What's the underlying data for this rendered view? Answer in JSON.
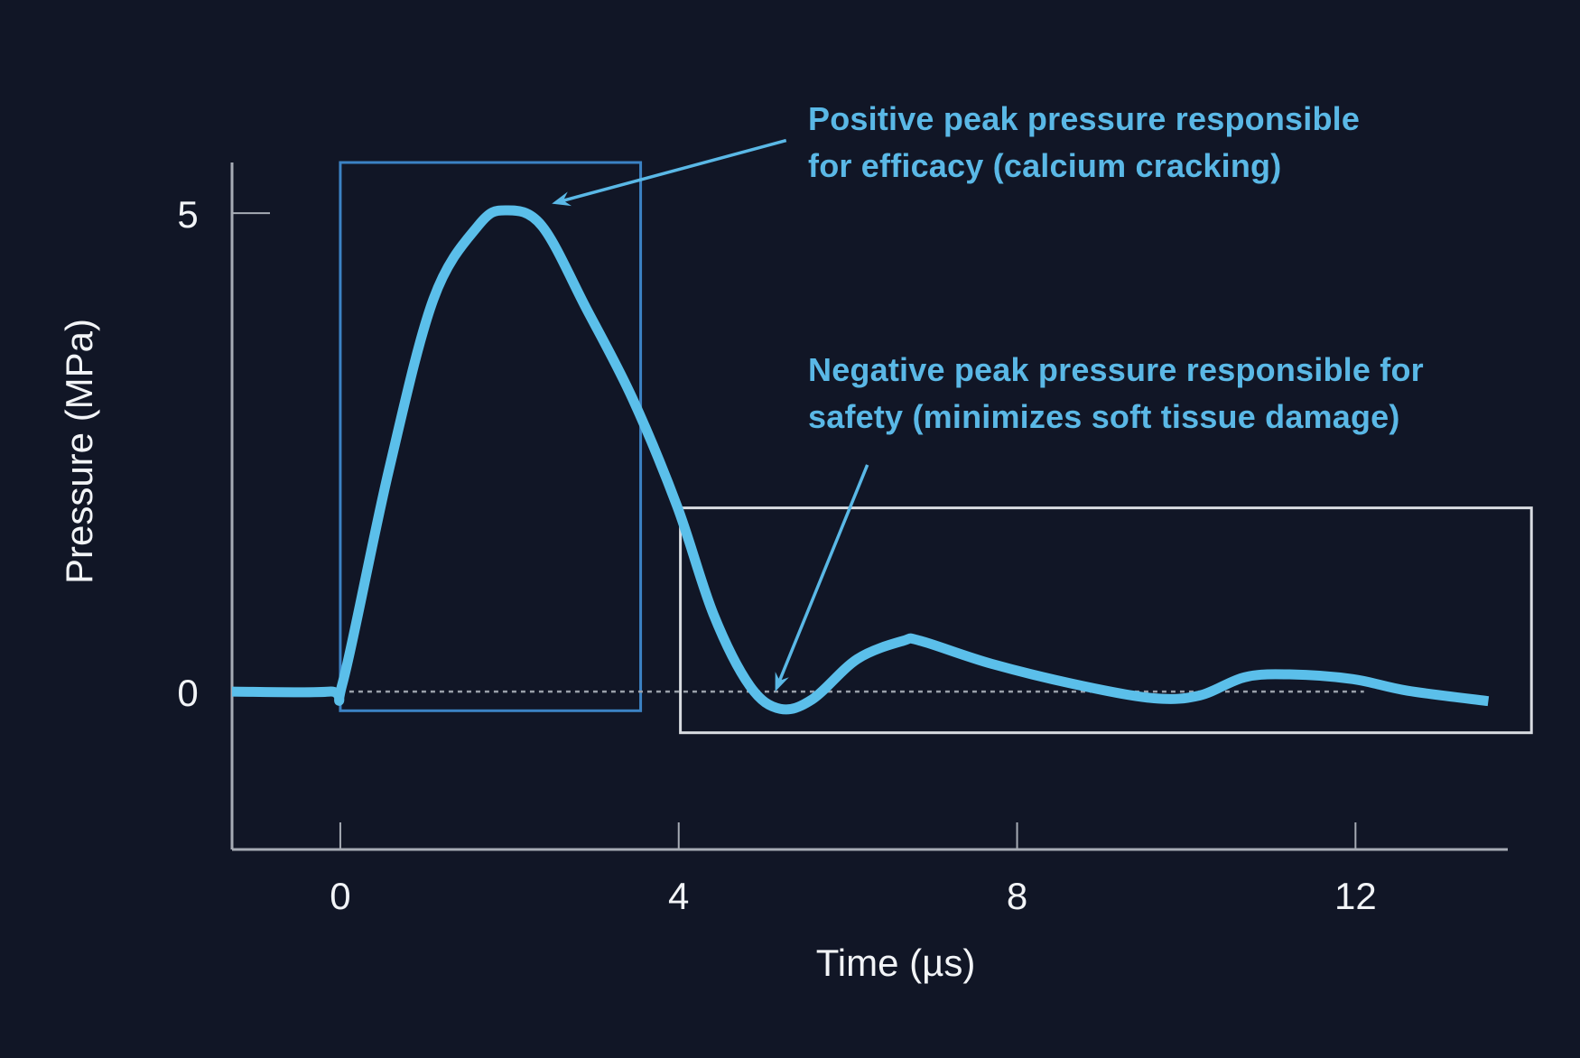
{
  "chart_data": {
    "type": "line",
    "title": "",
    "xlabel": "Time (µs)",
    "ylabel": "Pressure (MPa)",
    "xlim": [
      -1.28,
      13.8
    ],
    "ylim": [
      -1.65,
      5.53
    ],
    "grid": false,
    "legend": "none",
    "x_ticks": [
      0,
      4,
      8,
      12
    ],
    "x_tick_labels": [
      "0",
      "4",
      "8",
      "12"
    ],
    "y_ticks": [
      0,
      5
    ],
    "y_tick_labels": [
      "0",
      "5"
    ],
    "series": [
      {
        "name": "Pressure waveform",
        "color": "#5bbfea",
        "x": [
          -1.28,
          -0.13,
          0.03,
          0.57,
          1.1,
          1.63,
          1.95,
          2.38,
          2.91,
          3.45,
          3.98,
          4.41,
          4.84,
          5.2,
          5.58,
          6.11,
          6.65,
          6.86,
          7.7,
          8.77,
          9.62,
          10.16,
          10.69,
          11.22,
          11.97,
          12.61,
          13.57
        ],
        "y": [
          0,
          0,
          0.1,
          2.3,
          4.1,
          4.87,
          5.03,
          4.87,
          4.0,
          3.07,
          1.94,
          0.81,
          0.06,
          -0.18,
          -0.08,
          0.34,
          0.53,
          0.53,
          0.29,
          0.06,
          -0.07,
          -0.04,
          0.15,
          0.18,
          0.13,
          0.01,
          -0.1
        ]
      }
    ],
    "reference_line": {
      "name": "zero-pressure-line",
      "y": 0,
      "x_range": [
        0,
        12.1
      ],
      "style": "dotted",
      "color": "#9aa0aa"
    },
    "highlight_boxes": [
      {
        "name": "positive-peak-box",
        "x_range": [
          0,
          3.55
        ],
        "y_range": [
          -0.2,
          5.53
        ],
        "color": "#3b82c4"
      },
      {
        "name": "negative-peak-box",
        "x_range": [
          4.02,
          14.08
        ],
        "y_range": [
          -0.43,
          1.92
        ],
        "color": "#d9dce1"
      }
    ],
    "annotations": [
      {
        "name": "positive-peak-annotation",
        "lines": [
          "Positive peak pressure responsible",
          "for efficacy (calcium cracking)"
        ],
        "arrow_from": [
          5.27,
          5.76
        ],
        "arrow_to": [
          2.5,
          5.1
        ]
      },
      {
        "name": "negative-peak-annotation",
        "lines": [
          "Negative peak pressure responsible for",
          "safety (minimizes soft tissue damage)"
        ],
        "arrow_from": [
          6.23,
          2.37
        ],
        "arrow_to": [
          5.14,
          0.0
        ]
      }
    ],
    "colors": {
      "background": "#111626",
      "axis": "#a6abb4",
      "curve": "#5bbfea",
      "annotation_text": "#5ab8e6",
      "tick_text": "#f2f4f7"
    }
  }
}
